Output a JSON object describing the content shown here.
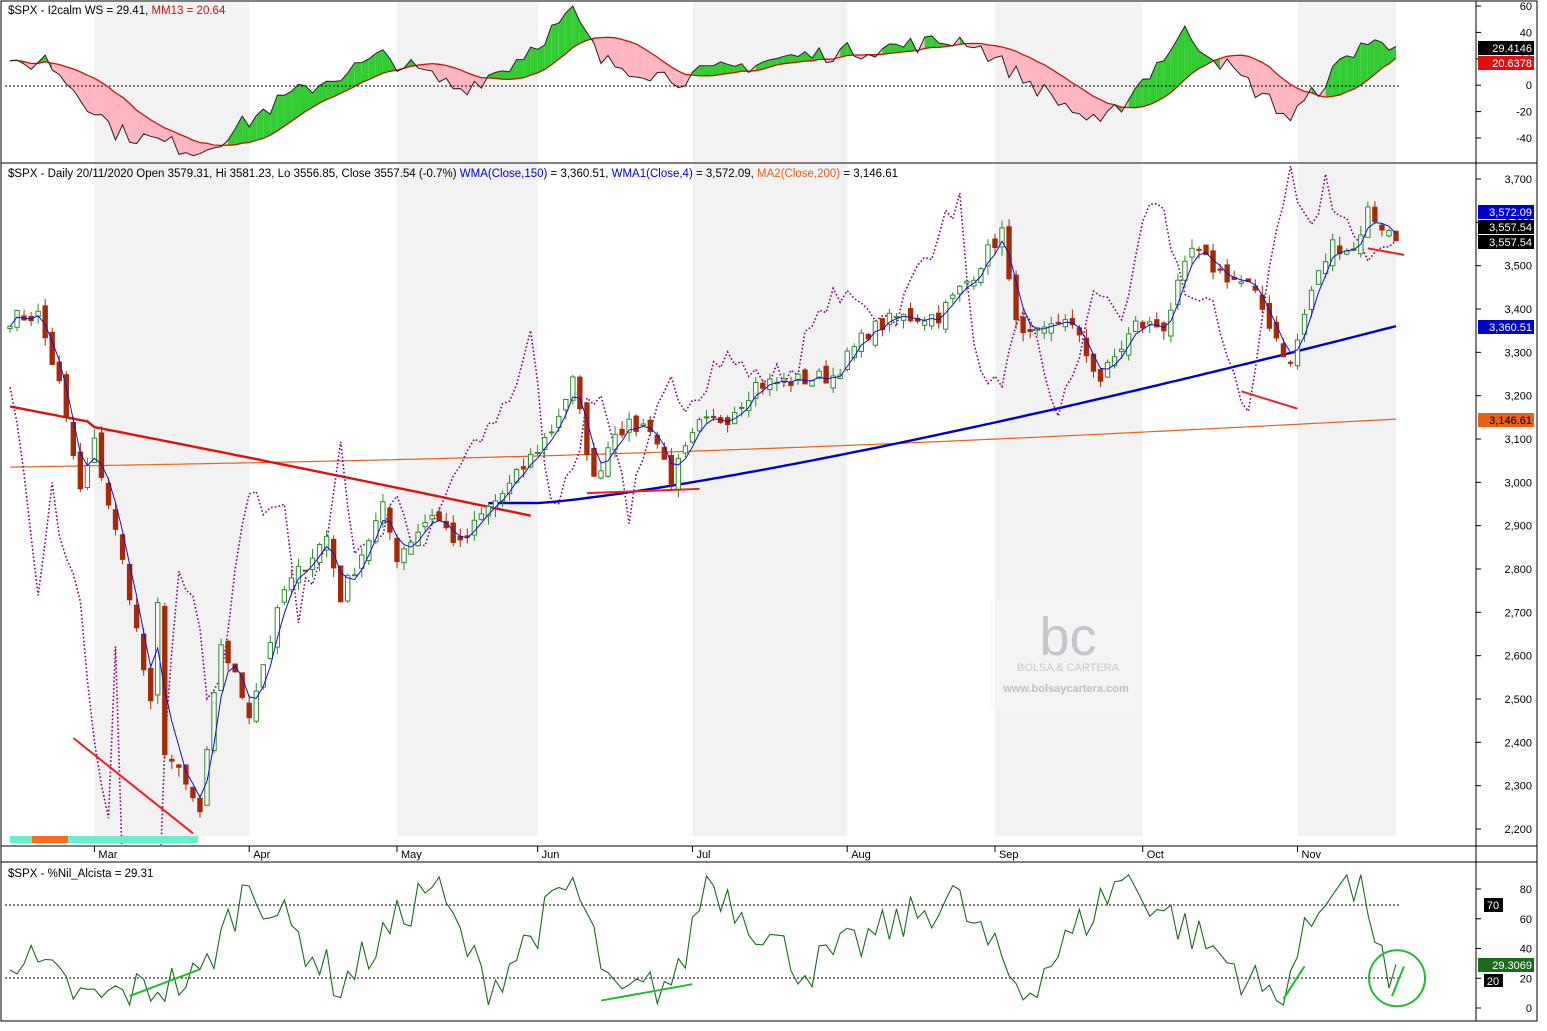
{
  "colors": {
    "candle_up": "#2e8b2e",
    "candle_down": "#a52a0a",
    "wma150": "#0000cc",
    "wma4": "#1010cc",
    "ma200": "#e8601c",
    "red_ma": "#dd1111",
    "dotted_line": "#800080",
    "osc_up_fill": "#33cc33",
    "osc_down_fill": "#ffb6c1",
    "mm13": "#cc1111",
    "nil_line": "#1a6b1a",
    "annotation_red": "#ee2222",
    "annotation_green": "#22bb33",
    "band": "#f2f2f2"
  },
  "top_panel": {
    "title_prefix": "$SPX - I2calm WS = 29.41, ",
    "title_mm": "MM13 = 20.64",
    "y_ticks": [
      "60",
      "40",
      "20",
      "0",
      "-20",
      "-40"
    ],
    "badge_value": "29.4146",
    "badge_mm": "20.6378"
  },
  "main_panel": {
    "title_segments": [
      {
        "text": "$SPX - Daily 20/11/2020 Open 3579.31, Hi 3581.23, Lo 3556.85, Close 3557.54 (-0.7%) ",
        "color": "#000000"
      },
      {
        "text": "WMA(Close,150)",
        "color": "#0000cc"
      },
      {
        "text": " = 3,360.51, ",
        "color": "#000000"
      },
      {
        "text": "WMA1(Close,4)",
        "color": "#0000cc"
      },
      {
        "text": " = 3,572.09, ",
        "color": "#000000"
      },
      {
        "text": "MA2(Close,200)",
        "color": "#e8601c"
      },
      {
        "text": " = 3,146.61",
        "color": "#000000"
      }
    ],
    "y_ticks": [
      "3,700",
      "3,600",
      "3,500",
      "3,400",
      "3,300",
      "3,200",
      "3,100",
      "3,000",
      "2,900",
      "2,800",
      "2,700",
      "2,600",
      "2,500",
      "2,400",
      "2,300",
      "2,200"
    ],
    "badges": [
      "3,572.09",
      "3,557.54",
      "3,557.54",
      "3,360.51",
      "3,146.61"
    ],
    "months": [
      "Mar",
      "Apr",
      "May",
      "Jun",
      "Jul",
      "Aug",
      "Sep",
      "Oct",
      "Nov"
    ]
  },
  "watermark": {
    "logo_text": "bc",
    "name": "BOLSA & CARTERA",
    "url": "www.bolsaycartera.com"
  },
  "bottom_panel": {
    "title": "$SPX - %Nil_Alcista = 29.31",
    "y_ticks": [
      "80",
      "60",
      "40",
      "20",
      "0"
    ],
    "badge_70": "70",
    "badge_value": "29.3069",
    "badge_20": "20"
  },
  "chart_data": [
    {
      "type": "candlestick",
      "title": "$SPX - Daily 20/11/2020",
      "ylim": [
        2180,
        3720
      ],
      "x_range": [
        "2020-02-12",
        "2020-11-20"
      ],
      "last_bar": {
        "date": "2020-11-20",
        "open": 3579.31,
        "high": 3581.23,
        "low": 3556.85,
        "close": 3557.54,
        "change_pct": -0.7
      },
      "anchors": [
        {
          "date": "2020-02-12",
          "close": 3379
        },
        {
          "date": "2020-02-19",
          "close": 3386
        },
        {
          "date": "2020-02-24",
          "close": 3225
        },
        {
          "date": "2020-02-27",
          "close": 2978
        },
        {
          "date": "2020-03-02",
          "close": 3090
        },
        {
          "date": "2020-03-09",
          "close": 2746
        },
        {
          "date": "2020-03-12",
          "close": 2480
        },
        {
          "date": "2020-03-13",
          "close": 2711
        },
        {
          "date": "2020-03-16",
          "close": 2386
        },
        {
          "date": "2020-03-23",
          "close": 2237
        },
        {
          "date": "2020-03-26",
          "close": 2630
        },
        {
          "date": "2020-04-01",
          "close": 2470
        },
        {
          "date": "2020-04-08",
          "close": 2750
        },
        {
          "date": "2020-04-17",
          "close": 2875
        },
        {
          "date": "2020-04-21",
          "close": 2736
        },
        {
          "date": "2020-04-29",
          "close": 2939
        },
        {
          "date": "2020-05-01",
          "close": 2830
        },
        {
          "date": "2020-05-08",
          "close": 2930
        },
        {
          "date": "2020-05-14",
          "close": 2852
        },
        {
          "date": "2020-05-19",
          "close": 2922
        },
        {
          "date": "2020-05-26",
          "close": 2991
        },
        {
          "date": "2020-06-03",
          "close": 3122
        },
        {
          "date": "2020-06-08",
          "close": 3232
        },
        {
          "date": "2020-06-11",
          "close": 3002
        },
        {
          "date": "2020-06-16",
          "close": 3124
        },
        {
          "date": "2020-06-23",
          "close": 3131
        },
        {
          "date": "2020-06-26",
          "close": 3009
        },
        {
          "date": "2020-07-02",
          "close": 3130
        },
        {
          "date": "2020-07-09",
          "close": 3152
        },
        {
          "date": "2020-07-15",
          "close": 3226
        },
        {
          "date": "2020-07-23",
          "close": 3235
        },
        {
          "date": "2020-07-30",
          "close": 3246
        },
        {
          "date": "2020-08-06",
          "close": 3349
        },
        {
          "date": "2020-08-12",
          "close": 3380
        },
        {
          "date": "2020-08-20",
          "close": 3385
        },
        {
          "date": "2020-08-27",
          "close": 3484
        },
        {
          "date": "2020-09-02",
          "close": 3580
        },
        {
          "date": "2020-09-03",
          "close": 3455
        },
        {
          "date": "2020-09-08",
          "close": 3331
        },
        {
          "date": "2020-09-11",
          "close": 3341
        },
        {
          "date": "2020-09-16",
          "close": 3385
        },
        {
          "date": "2020-09-23",
          "close": 3237
        },
        {
          "date": "2020-09-30",
          "close": 3363
        },
        {
          "date": "2020-10-06",
          "close": 3361
        },
        {
          "date": "2020-10-12",
          "close": 3535
        },
        {
          "date": "2020-10-16",
          "close": 3484
        },
        {
          "date": "2020-10-22",
          "close": 3453
        },
        {
          "date": "2020-10-26",
          "close": 3400
        },
        {
          "date": "2020-10-30",
          "close": 3270
        },
        {
          "date": "2020-11-04",
          "close": 3443
        },
        {
          "date": "2020-11-09",
          "close": 3550
        },
        {
          "date": "2020-11-12",
          "close": 3537
        },
        {
          "date": "2020-11-16",
          "close": 3627
        },
        {
          "date": "2020-11-20",
          "close": 3557.54
        }
      ],
      "indicators": [
        {
          "name": "WMA(Close,150)",
          "last": 3360.51
        },
        {
          "name": "WMA1(Close,4)",
          "last": 3572.09
        },
        {
          "name": "MA2(Close,200)",
          "last": 3146.61
        }
      ],
      "grid": false
    },
    {
      "type": "area",
      "title": "$SPX - I2calm WS = 29.41, MM13 = 20.64",
      "ylim": [
        -55,
        65
      ],
      "series": [
        {
          "name": "I2calm WS",
          "last": 29.4146
        },
        {
          "name": "MM13",
          "last": 20.6378
        }
      ],
      "anchors": [
        {
          "date": "2020-02-12",
          "ws": 12
        },
        {
          "date": "2020-02-20",
          "ws": 20
        },
        {
          "date": "2020-03-05",
          "ws": -35
        },
        {
          "date": "2020-03-23",
          "ws": -50
        },
        {
          "date": "2020-04-08",
          "ws": -10
        },
        {
          "date": "2020-04-29",
          "ws": 22
        },
        {
          "date": "2020-05-14",
          "ws": -3
        },
        {
          "date": "2020-05-26",
          "ws": 15
        },
        {
          "date": "2020-06-08",
          "ws": 55
        },
        {
          "date": "2020-06-12",
          "ws": 18
        },
        {
          "date": "2020-06-29",
          "ws": 5
        },
        {
          "date": "2020-07-20",
          "ws": 20
        },
        {
          "date": "2020-08-26",
          "ws": 35
        },
        {
          "date": "2020-09-08",
          "ws": 5
        },
        {
          "date": "2020-09-23",
          "ws": -32
        },
        {
          "date": "2020-10-09",
          "ws": 40
        },
        {
          "date": "2020-10-30",
          "ws": -25
        },
        {
          "date": "2020-11-13",
          "ws": 32
        },
        {
          "date": "2020-11-20",
          "ws": 29.41
        }
      ],
      "reference_line": 0,
      "legend": "top-left"
    },
    {
      "type": "line",
      "title": "$SPX - %Nil_Alcista = 29.31",
      "ylim": [
        0,
        95
      ],
      "series": [
        {
          "name": "%Nil_Alcista",
          "last": 29.3069
        }
      ],
      "reference_lines": [
        70,
        20
      ],
      "anchors": [
        {
          "date": "2020-02-12",
          "v": 38
        },
        {
          "date": "2020-02-28",
          "v": 5
        },
        {
          "date": "2020-03-23",
          "v": 20
        },
        {
          "date": "2020-04-01",
          "v": 85
        },
        {
          "date": "2020-04-21",
          "v": 15
        },
        {
          "date": "2020-05-08",
          "v": 85
        },
        {
          "date": "2020-05-20",
          "v": 12
        },
        {
          "date": "2020-06-08",
          "v": 85
        },
        {
          "date": "2020-06-16",
          "v": 5
        },
        {
          "date": "2020-06-29",
          "v": 20
        },
        {
          "date": "2020-07-03",
          "v": 88
        },
        {
          "date": "2020-07-24",
          "v": 25
        },
        {
          "date": "2020-08-24",
          "v": 75
        },
        {
          "date": "2020-09-08",
          "v": 10
        },
        {
          "date": "2020-09-28",
          "v": 88
        },
        {
          "date": "2020-10-28",
          "v": 5
        },
        {
          "date": "2020-11-09",
          "v": 88
        },
        {
          "date": "2020-11-16",
          "v": 72
        },
        {
          "date": "2020-11-19",
          "v": 10
        },
        {
          "date": "2020-11-20",
          "v": 29.31
        }
      ]
    }
  ]
}
